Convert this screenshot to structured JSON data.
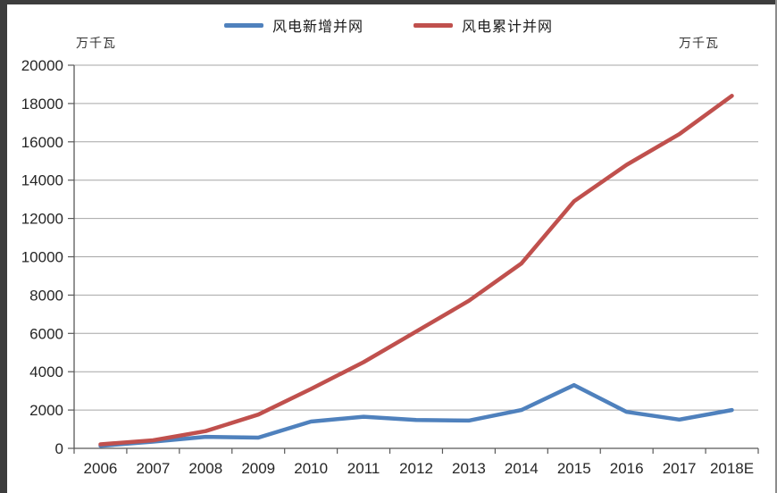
{
  "unit_left": "万千瓦",
  "unit_right": "万千瓦",
  "colors": {
    "series_new": "#4f81bd",
    "series_cumulative": "#c0504d",
    "gridline": "#a6a6a6",
    "axis": "#595959",
    "tick_label": "#262626",
    "frame_dark": "#3d3d3d",
    "frame_light": "#8c8c8c"
  },
  "chart_data": {
    "type": "line",
    "categories": [
      "2006",
      "2007",
      "2008",
      "2009",
      "2010",
      "2011",
      "2012",
      "2013",
      "2014",
      "2015",
      "2016",
      "2017",
      "2018E"
    ],
    "series": [
      {
        "name": "风电新增并网",
        "color": "#4f81bd",
        "values": [
          130,
          350,
          600,
          560,
          1400,
          1650,
          1480,
          1450,
          2000,
          3300,
          1900,
          1500,
          2000
        ]
      },
      {
        "name": "风电累计并网",
        "color": "#c0504d",
        "values": [
          210,
          420,
          900,
          1760,
          3100,
          4500,
          6100,
          7700,
          9650,
          12900,
          14800,
          16400,
          18400
        ]
      }
    ],
    "title": "",
    "xlabel": "",
    "ylabel": "万千瓦",
    "ylim": [
      0,
      20000
    ],
    "ytick_step": 2000,
    "grid": true,
    "legend_position": "top"
  }
}
